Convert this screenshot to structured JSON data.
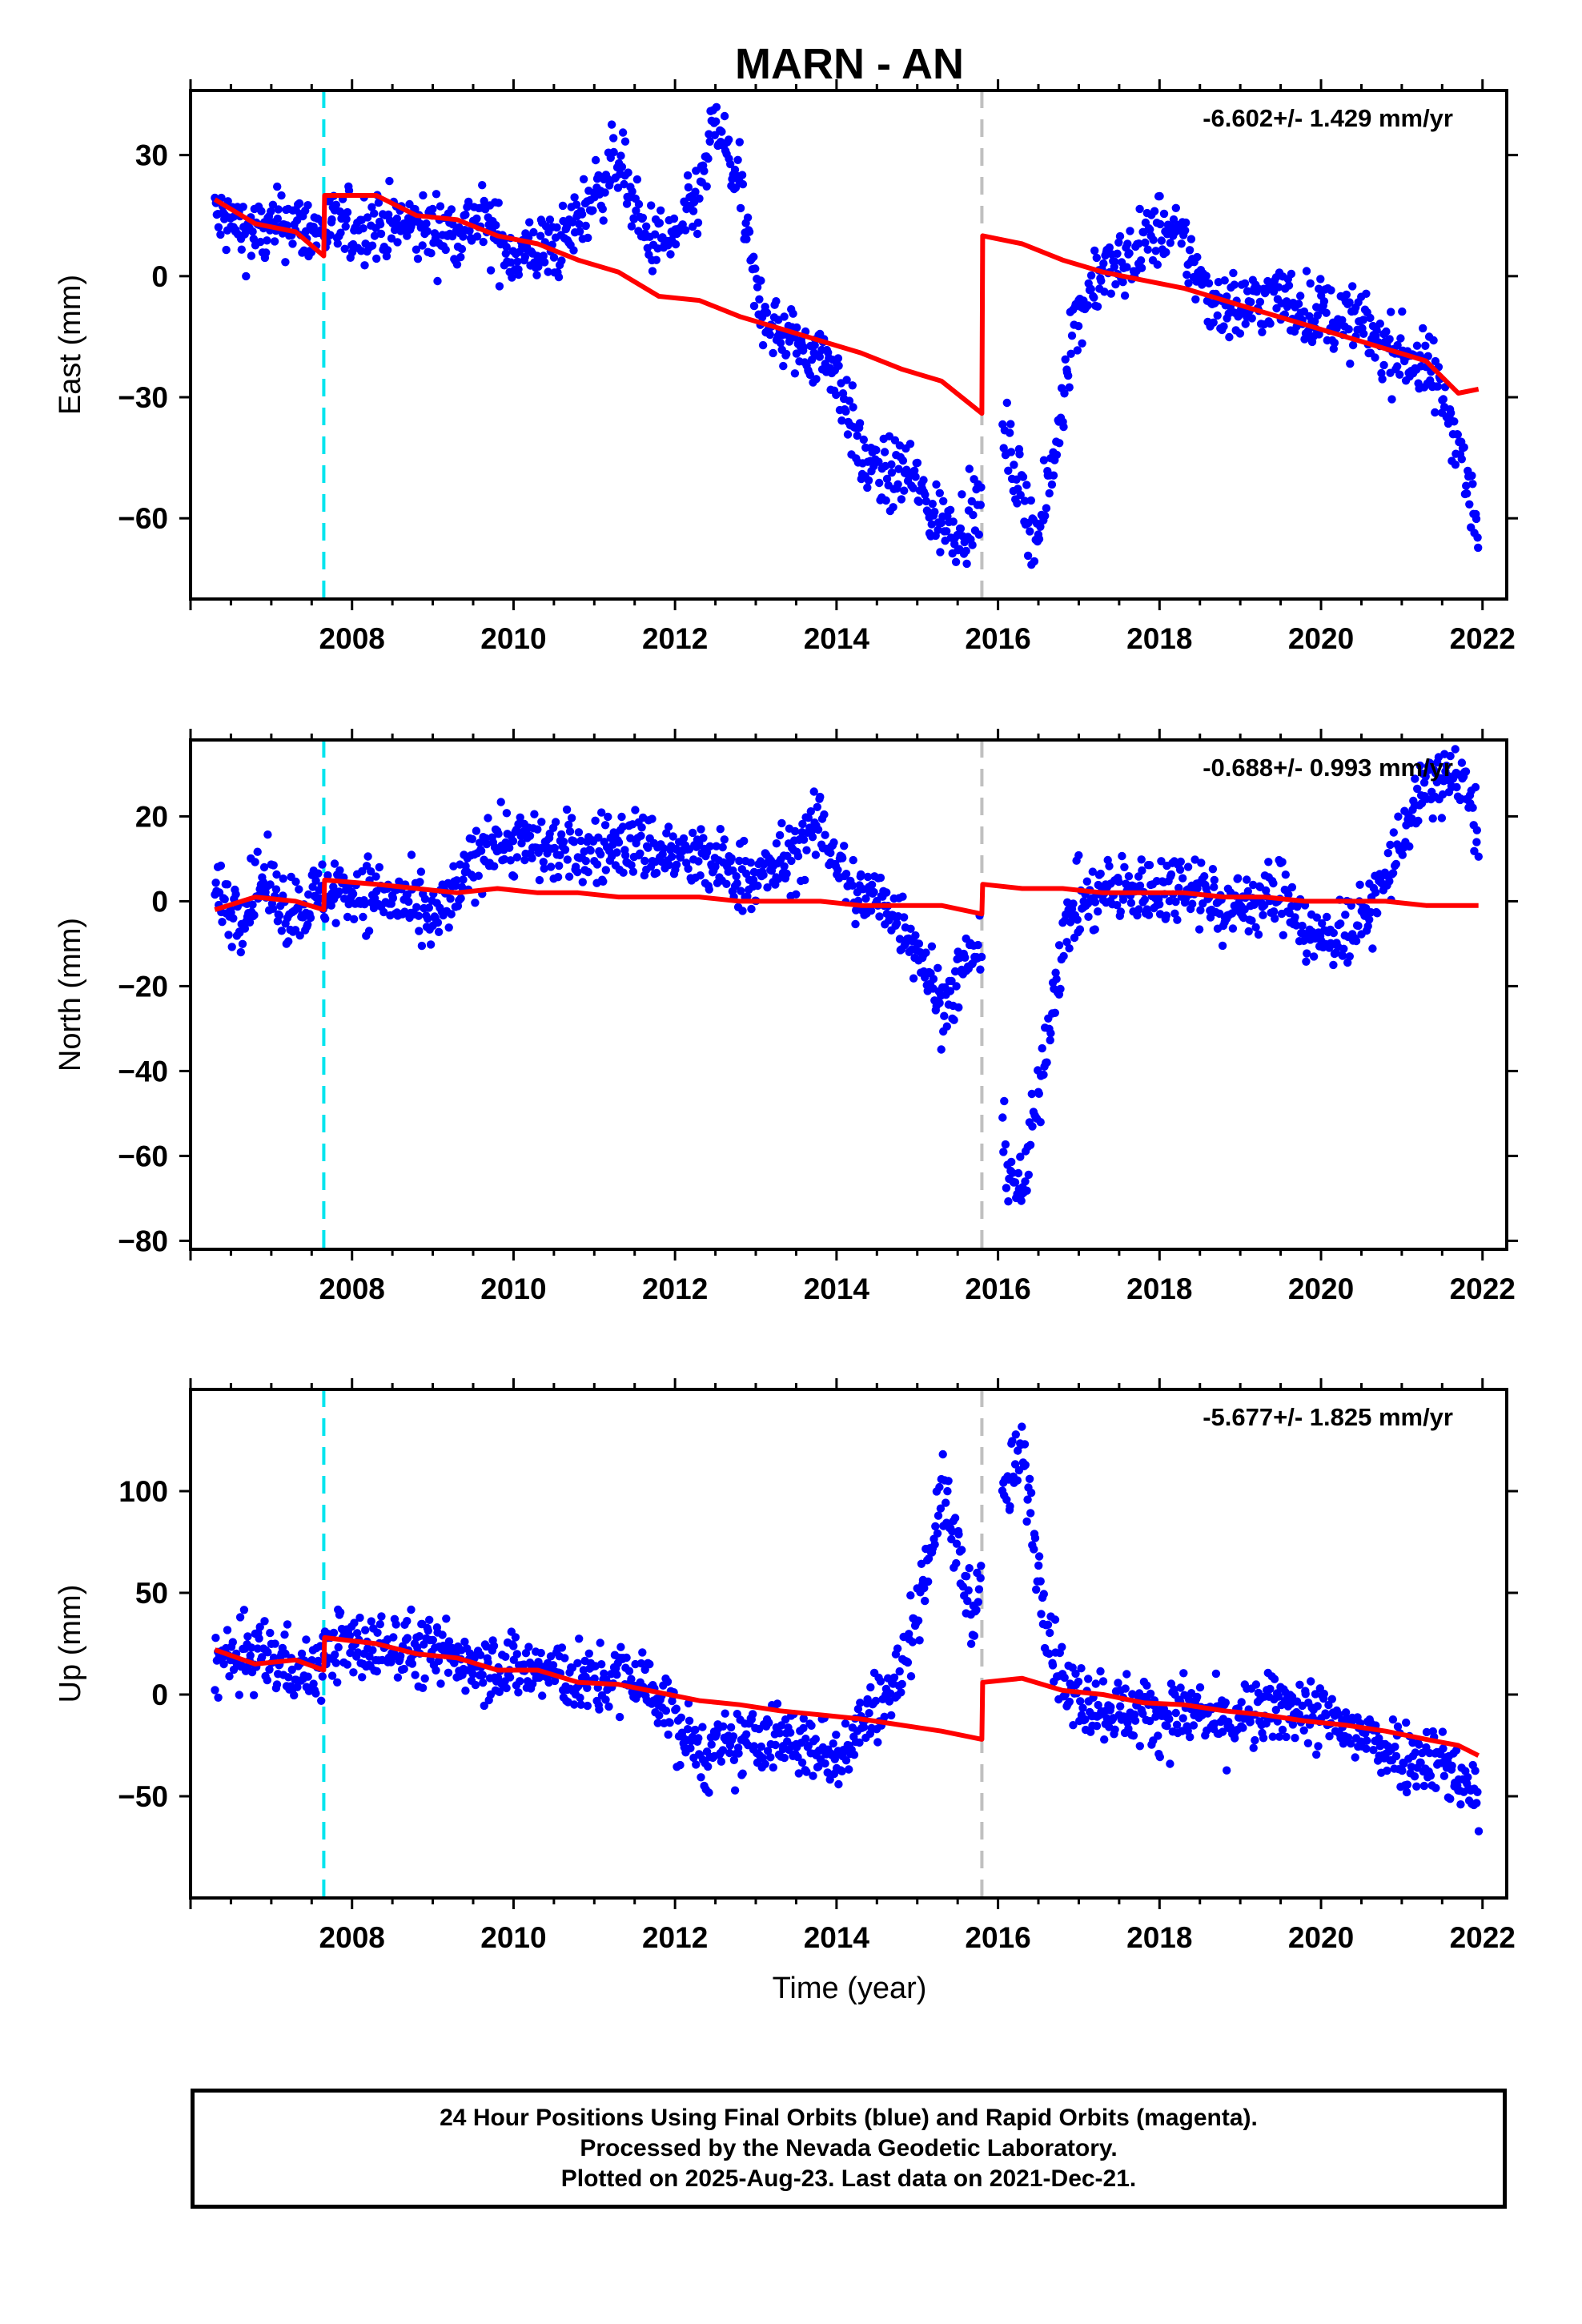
{
  "figure": {
    "title": "MARN - AN",
    "xlabel": "Time (year)",
    "footer": [
      "24 Hour Positions Using Final Orbits (blue) and Rapid Orbits (magenta).",
      "Processed by the Nevada Geodetic Laboratory.",
      "Plotted on 2025-Aug-23. Last data on 2021-Dec-21."
    ]
  },
  "colors": {
    "data": "#0000ff",
    "model": "#ff0000",
    "equipment_change": "#00e5ee",
    "earthquake": "#c0c0c0"
  },
  "chart_data": [
    {
      "type": "scatter",
      "ylabel": "East (mm)",
      "rate_label": "-6.602+/- 1.429 mm/yr",
      "xlim": [
        2006.0,
        2022.3
      ],
      "ylim": [
        -80,
        46
      ],
      "xticks": [
        2008,
        2010,
        2012,
        2014,
        2016,
        2018,
        2020,
        2022
      ],
      "yticks": [
        30,
        0,
        -30,
        -60
      ],
      "vlines": [
        {
          "x": 2007.65,
          "kind": "equipment_change"
        },
        {
          "x": 2015.8,
          "kind": "earthquake"
        }
      ],
      "series": [
        {
          "role": "daily_positions",
          "x": [
            2006.3,
            2006.6,
            2006.9,
            2007.2,
            2007.5,
            2007.7,
            2008.0,
            2008.4,
            2008.8,
            2009.2,
            2009.6,
            2010.0,
            2010.6,
            2011.0,
            2011.3,
            2011.6,
            2011.9,
            2012.1,
            2012.3,
            2012.5,
            2012.8,
            2013.0,
            2013.3,
            2013.6,
            2013.9,
            2014.1,
            2014.3,
            2014.6,
            2014.9,
            2015.2,
            2015.5,
            2015.7,
            2016.1,
            2016.3,
            2016.5,
            2016.7,
            2016.9,
            2017.2,
            2017.5,
            2018.0,
            2018.3,
            2018.6,
            2019.0,
            2019.4,
            2019.8,
            2020.5,
            2020.8,
            2021.1,
            2021.4,
            2021.7,
            2021.95
          ],
          "y": [
            15,
            12,
            10,
            14,
            11,
            12,
            12,
            13,
            12,
            11,
            14,
            5,
            8,
            20,
            30,
            10,
            8,
            12,
            20,
            38,
            22,
            -5,
            -15,
            -18,
            -20,
            -30,
            -45,
            -50,
            -48,
            -60,
            -62,
            -60,
            -40,
            -55,
            -65,
            -45,
            -15,
            0,
            2,
            12,
            8,
            -5,
            -8,
            -5,
            -8,
            -12,
            -18,
            -20,
            -25,
            -40,
            -65
          ]
        },
        {
          "role": "model",
          "x": [
            2006.3,
            2006.8,
            2007.3,
            2007.65,
            2007.66,
            2008.3,
            2008.8,
            2009.3,
            2009.8,
            2010.3,
            2010.8,
            2011.3,
            2011.8,
            2012.3,
            2012.8,
            2013.3,
            2013.8,
            2014.3,
            2014.8,
            2015.3,
            2015.8,
            2015.81,
            2016.3,
            2016.8,
            2017.3,
            2017.8,
            2018.3,
            2018.8,
            2019.3,
            2019.8,
            2020.3,
            2020.8,
            2021.3,
            2021.7,
            2021.95
          ],
          "y": [
            19,
            13,
            11,
            5,
            20,
            20,
            15,
            14,
            10,
            8,
            4,
            1,
            -5,
            -6,
            -10,
            -13,
            -16,
            -19,
            -23,
            -26,
            -34,
            10,
            8,
            4,
            1,
            -1,
            -3,
            -6,
            -9,
            -12,
            -15,
            -18,
            -21,
            -29,
            -28
          ]
        }
      ]
    },
    {
      "type": "scatter",
      "ylabel": "North (mm)",
      "rate_label": "-0.688+/- 0.993 mm/yr",
      "xlim": [
        2006.0,
        2022.3
      ],
      "ylim": [
        -82,
        38
      ],
      "xticks": [
        2008,
        2010,
        2012,
        2014,
        2016,
        2018,
        2020,
        2022
      ],
      "yticks": [
        20,
        0,
        -20,
        -40,
        -60,
        -80
      ],
      "vlines": [
        {
          "x": 2007.65,
          "kind": "equipment_change"
        },
        {
          "x": 2015.8,
          "kind": "earthquake"
        }
      ],
      "series": [
        {
          "role": "daily_positions",
          "x": [
            2006.3,
            2006.6,
            2006.9,
            2007.2,
            2007.5,
            2007.8,
            2008.2,
            2008.6,
            2009.0,
            2009.3,
            2009.7,
            2010.0,
            2010.6,
            2011.0,
            2011.4,
            2011.8,
            2012.2,
            2012.6,
            2013.0,
            2013.4,
            2013.8,
            2014.2,
            2014.6,
            2015.0,
            2015.3,
            2015.6,
            2015.75,
            2016.1,
            2016.3,
            2016.5,
            2016.7,
            2016.9,
            2017.3,
            2018.0,
            2018.4,
            2018.8,
            2019.2,
            2019.6,
            2019.9,
            2020.5,
            2020.8,
            2021.1,
            2021.4,
            2021.6,
            2021.8,
            2021.95
          ],
          "y": [
            2,
            -3,
            5,
            -2,
            0,
            3,
            2,
            0,
            -5,
            2,
            15,
            14,
            12,
            12,
            14,
            12,
            10,
            8,
            5,
            10,
            18,
            2,
            0,
            -10,
            -25,
            -15,
            -10,
            -60,
            -70,
            -45,
            -20,
            -2,
            2,
            3,
            5,
            -2,
            0,
            2,
            -10,
            -5,
            5,
            20,
            28,
            30,
            25,
            18
          ]
        },
        {
          "role": "model",
          "x": [
            2006.3,
            2006.8,
            2007.3,
            2007.65,
            2007.66,
            2008.3,
            2008.8,
            2009.3,
            2009.8,
            2010.3,
            2010.8,
            2011.3,
            2011.8,
            2012.3,
            2012.8,
            2013.3,
            2013.8,
            2014.3,
            2014.8,
            2015.3,
            2015.8,
            2015.81,
            2016.3,
            2016.8,
            2017.3,
            2017.8,
            2018.3,
            2018.8,
            2019.3,
            2019.8,
            2020.3,
            2020.8,
            2021.3,
            2021.7,
            2021.95
          ],
          "y": [
            -2,
            1,
            0,
            -2,
            5,
            4,
            3,
            2,
            3,
            2,
            2,
            1,
            1,
            1,
            0,
            0,
            0,
            -1,
            -1,
            -1,
            -3,
            4,
            3,
            3,
            2,
            2,
            2,
            1,
            1,
            0,
            0,
            0,
            -1,
            -1,
            -1
          ]
        }
      ]
    },
    {
      "type": "scatter",
      "ylabel": "Up (mm)",
      "rate_label": "-5.677+/- 1.825 mm/yr",
      "xlim": [
        2006.0,
        2022.3
      ],
      "ylim": [
        -100,
        150
      ],
      "xticks": [
        2008,
        2010,
        2012,
        2014,
        2016,
        2018,
        2020,
        2022
      ],
      "yticks": [
        100,
        50,
        0,
        -50
      ],
      "vlines": [
        {
          "x": 2007.65,
          "kind": "equipment_change"
        },
        {
          "x": 2015.8,
          "kind": "earthquake"
        }
      ],
      "series": [
        {
          "role": "daily_positions",
          "x": [
            2006.3,
            2006.6,
            2006.9,
            2007.2,
            2007.5,
            2007.8,
            2008.2,
            2008.6,
            2009.0,
            2009.4,
            2009.8,
            2010.6,
            2011.0,
            2011.4,
            2011.8,
            2012.1,
            2012.4,
            2012.8,
            2013.2,
            2013.6,
            2014.0,
            2014.4,
            2014.8,
            2015.1,
            2015.3,
            2015.5,
            2015.7,
            2016.1,
            2016.3,
            2016.5,
            2016.7,
            2016.9,
            2017.3,
            2018.0,
            2018.4,
            2018.8,
            2019.2,
            2019.6,
            2020.5,
            2020.8,
            2021.1,
            2021.4,
            2021.7,
            2021.95
          ],
          "y": [
            15,
            18,
            20,
            15,
            10,
            25,
            22,
            25,
            20,
            18,
            15,
            10,
            5,
            10,
            0,
            -20,
            -30,
            -25,
            -20,
            -25,
            -30,
            -10,
            10,
            60,
            100,
            70,
            40,
            100,
            120,
            60,
            20,
            0,
            -5,
            -10,
            -8,
            -15,
            -10,
            -5,
            -20,
            -25,
            -30,
            -30,
            -40,
            -50
          ]
        },
        {
          "role": "model",
          "x": [
            2006.3,
            2006.8,
            2007.3,
            2007.65,
            2007.66,
            2008.3,
            2008.8,
            2009.3,
            2009.8,
            2010.3,
            2010.8,
            2011.3,
            2011.8,
            2012.3,
            2012.8,
            2013.3,
            2013.8,
            2014.3,
            2014.8,
            2015.3,
            2015.8,
            2015.81,
            2016.3,
            2016.8,
            2017.3,
            2017.8,
            2018.3,
            2018.8,
            2019.3,
            2019.8,
            2020.3,
            2020.8,
            2021.3,
            2021.7,
            2021.95
          ],
          "y": [
            22,
            15,
            17,
            12,
            28,
            25,
            20,
            18,
            12,
            12,
            6,
            5,
            1,
            -3,
            -5,
            -8,
            -10,
            -12,
            -15,
            -18,
            -22,
            6,
            8,
            2,
            0,
            -4,
            -5,
            -8,
            -10,
            -13,
            -15,
            -18,
            -22,
            -25,
            -30
          ]
        }
      ]
    }
  ]
}
